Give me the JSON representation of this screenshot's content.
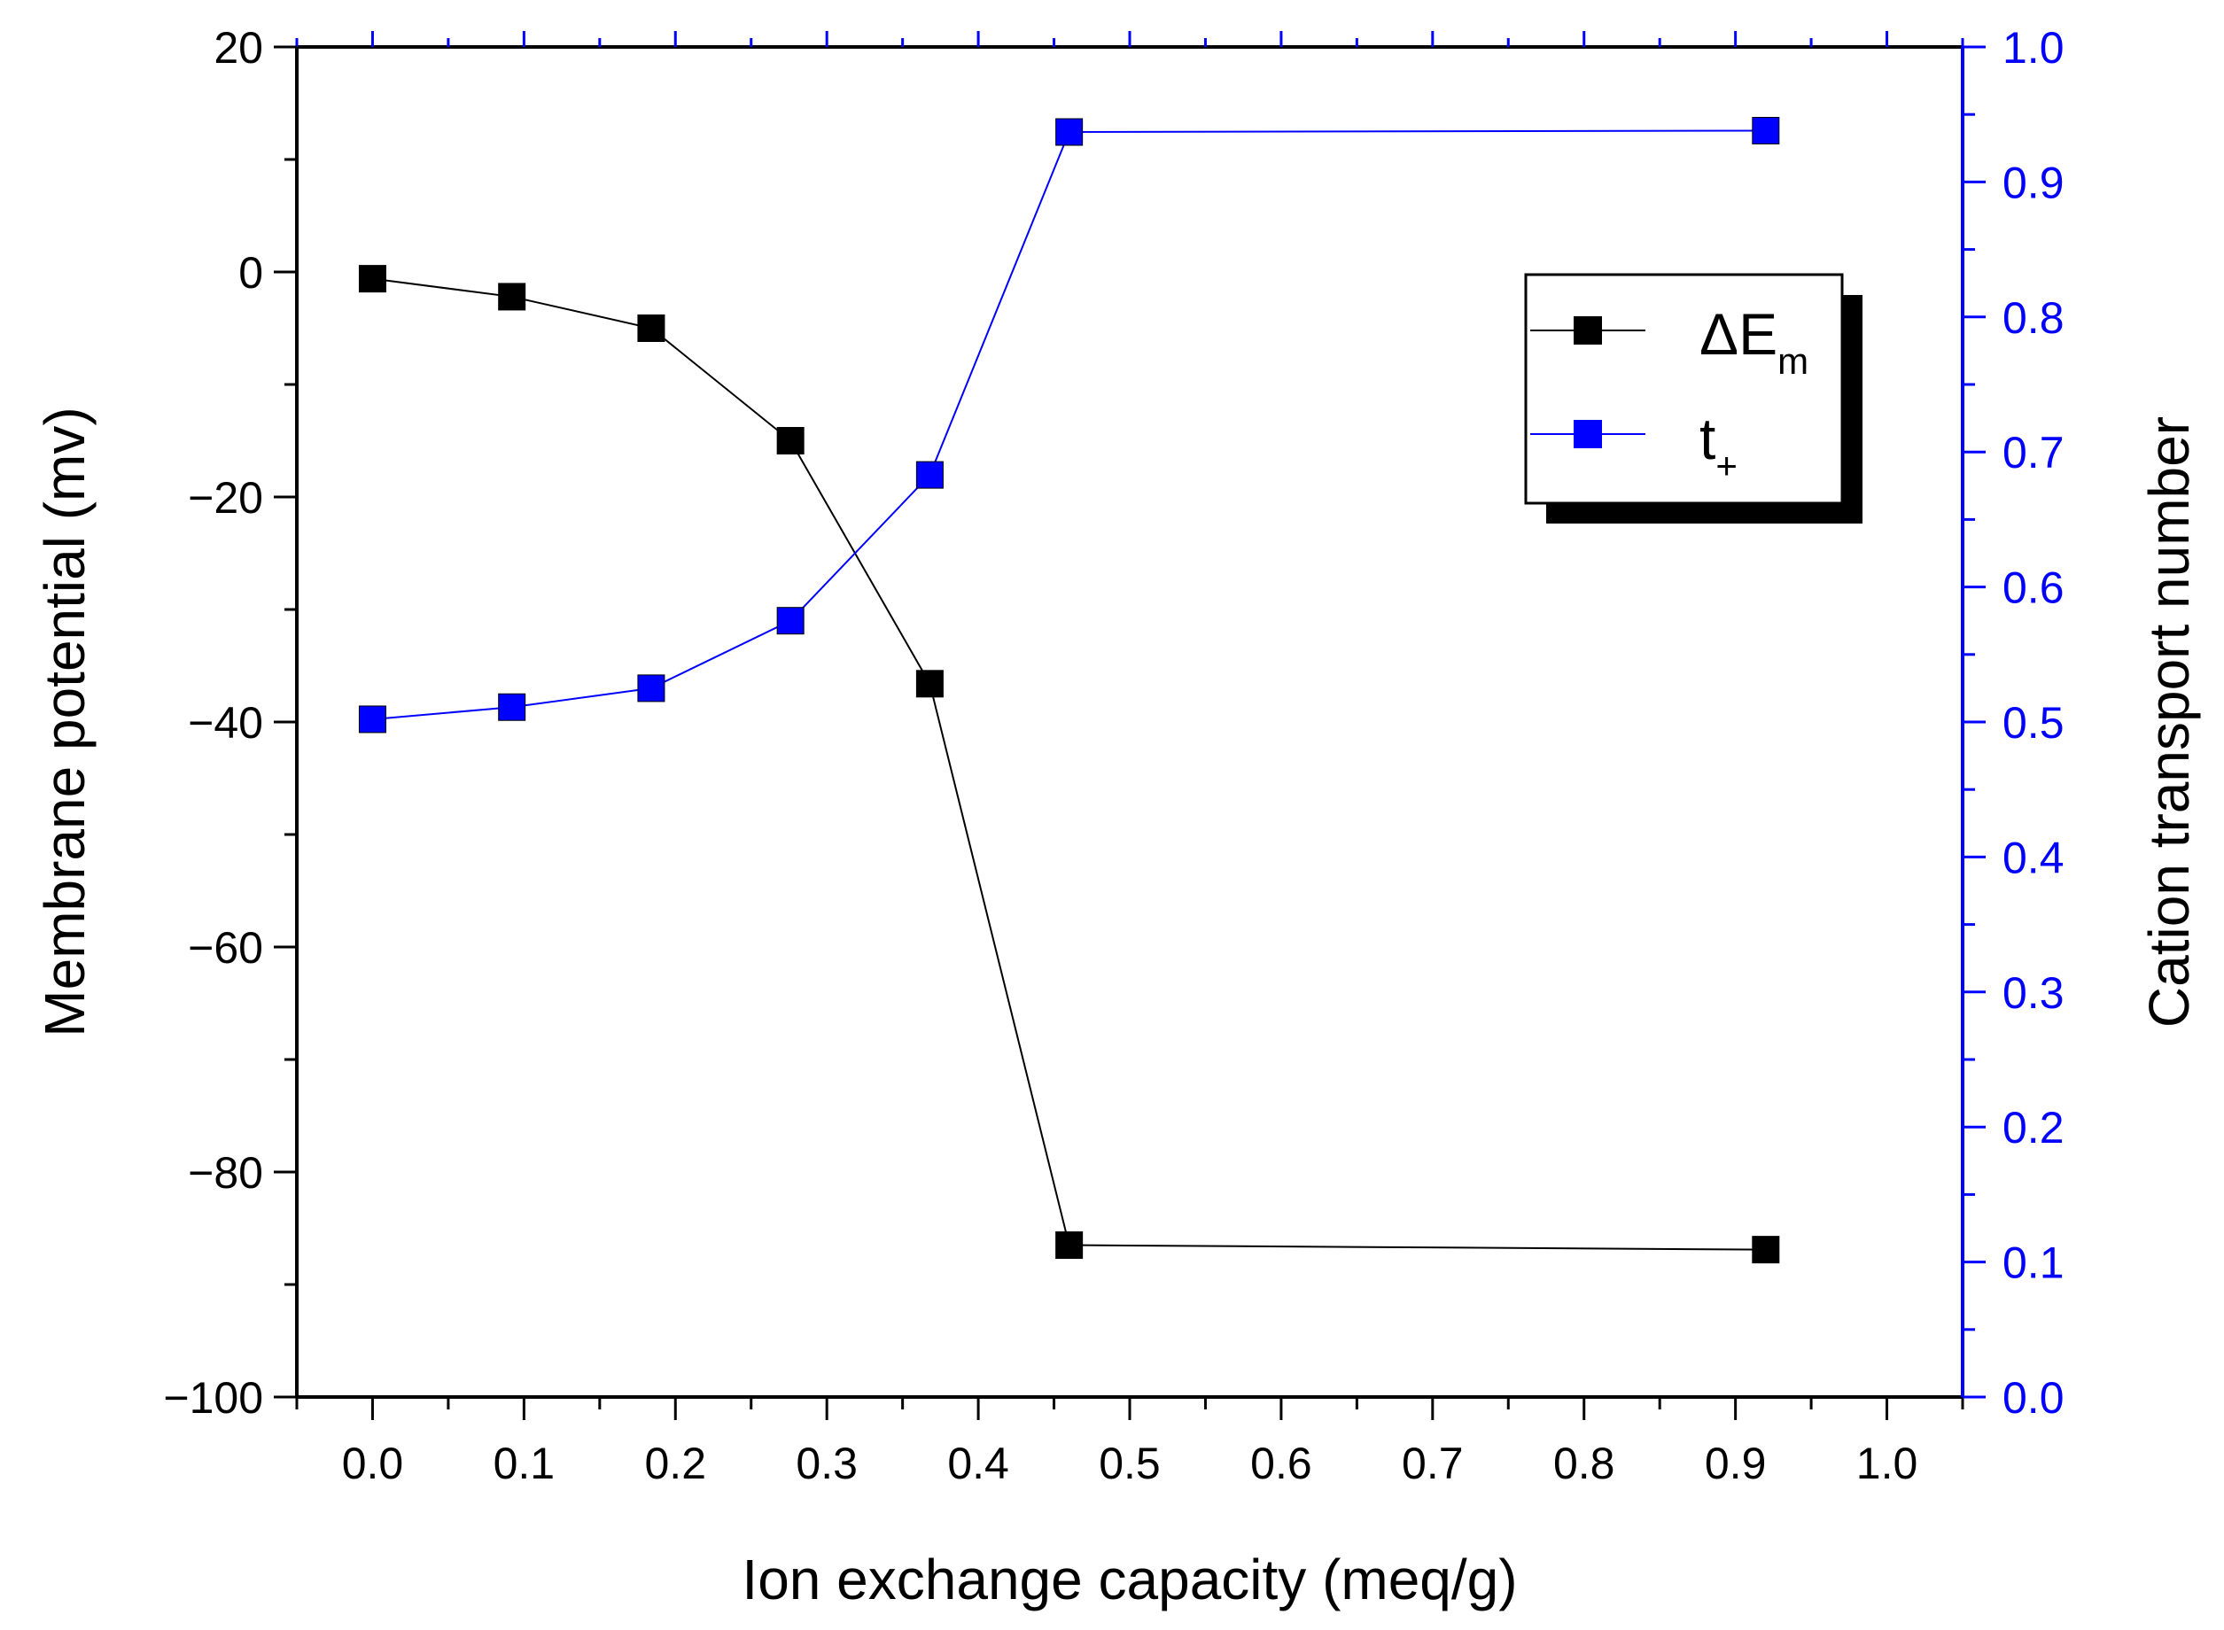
{
  "chart_data": {
    "type": "line",
    "xlabel": "Ion exchange capacity (meq/g)",
    "ylabel_left": "Membrane potential (mv)",
    "ylabel_right": "Cation transport number",
    "xlim": [
      -0.05,
      1.05
    ],
    "ylim_left": [
      -100,
      20
    ],
    "ylim_right": [
      0.0,
      1.0
    ],
    "x_ticks": [
      0.0,
      0.1,
      0.2,
      0.3,
      0.4,
      0.5,
      0.6,
      0.7,
      0.8,
      0.9,
      1.0
    ],
    "x_tick_labels": [
      "0.0",
      "0.1",
      "0.2",
      "0.3",
      "0.4",
      "0.5",
      "0.6",
      "0.7",
      "0.8",
      "0.9",
      "1.0"
    ],
    "y_left_ticks": [
      -100,
      -80,
      -60,
      -40,
      -20,
      0,
      20
    ],
    "y_left_tick_labels": [
      "−100",
      "−80",
      "−60",
      "−40",
      "−20",
      "0",
      "20"
    ],
    "y_right_ticks": [
      0.0,
      0.1,
      0.2,
      0.3,
      0.4,
      0.5,
      0.6,
      0.7,
      0.8,
      0.9,
      1.0
    ],
    "y_right_tick_labels": [
      "0.0",
      "0.1",
      "0.2",
      "0.3",
      "0.4",
      "0.5",
      "0.6",
      "0.7",
      "0.8",
      "0.9",
      "1.0"
    ],
    "grid": false,
    "legend_position": "top-right",
    "series": [
      {
        "name": "ΔE",
        "subscript": "m",
        "axis": "left",
        "color": "#000000",
        "marker": "square",
        "x": [
          0.0,
          0.092,
          0.184,
          0.276,
          0.368,
          0.46,
          0.92
        ],
        "y": [
          -0.6,
          -2.2,
          -5.0,
          -15.0,
          -36.6,
          -86.5,
          -86.9
        ]
      },
      {
        "name": "t",
        "subscript": "+",
        "axis": "right",
        "color": "#0000ff",
        "marker": "square",
        "x": [
          0.0,
          0.092,
          0.184,
          0.276,
          0.368,
          0.46,
          0.92
        ],
        "y": [
          0.502,
          0.511,
          0.525,
          0.575,
          0.683,
          0.937,
          0.938
        ]
      }
    ]
  }
}
